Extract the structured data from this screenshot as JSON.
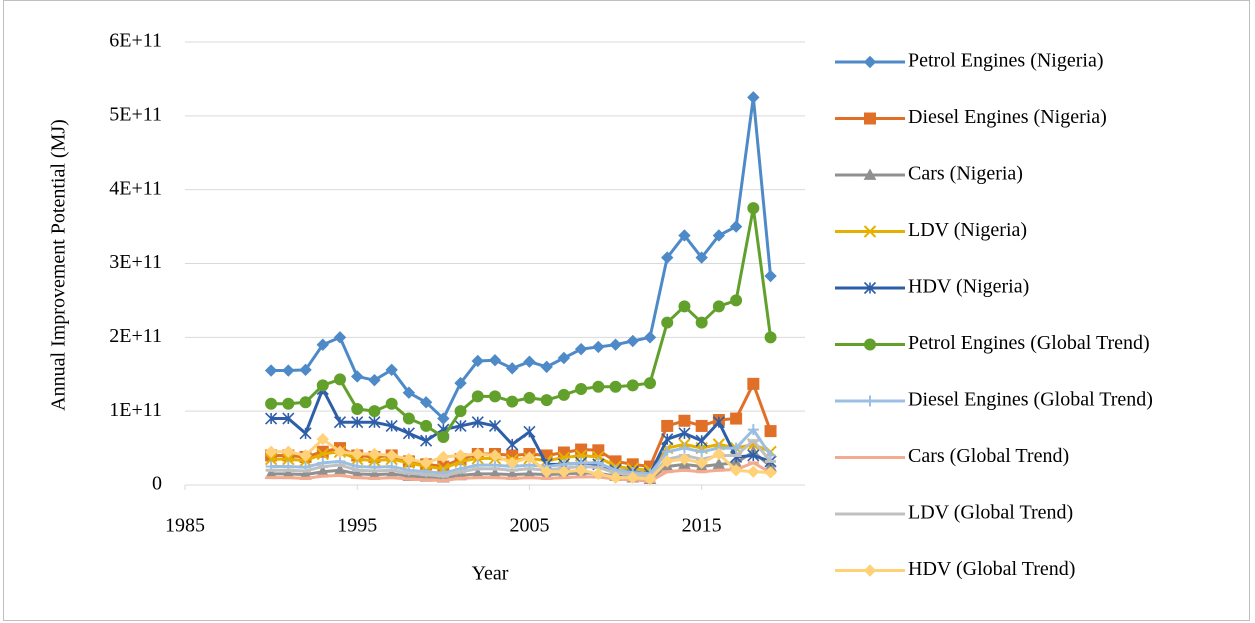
{
  "chart_data": {
    "type": "line",
    "x_label": "Year",
    "y_label": "Annual Improvement Potential (MJ)",
    "x": [
      1990,
      1991,
      1992,
      1993,
      1994,
      1995,
      1996,
      1997,
      1998,
      1999,
      2000,
      2001,
      2002,
      2003,
      2004,
      2005,
      2006,
      2007,
      2008,
      2009,
      2010,
      2011,
      2012,
      2013,
      2014,
      2015,
      2016,
      2017,
      2018,
      2019
    ],
    "xlim": [
      1985,
      2021
    ],
    "xticks": [
      1985,
      1995,
      2005,
      2015
    ],
    "ylim": [
      0,
      600000000000.0
    ],
    "yticks": [
      0,
      {
        "value": 100000000000.0,
        "label": "1E+11"
      },
      {
        "value": 200000000000.0,
        "label": "2E+11"
      },
      {
        "value": 300000000000.0,
        "label": "3E+11"
      },
      {
        "value": 400000000000.0,
        "label": "4E+11"
      },
      {
        "value": 500000000000.0,
        "label": "5E+11"
      },
      {
        "value": 600000000000.0,
        "label": "6E+11"
      }
    ],
    "grid": true,
    "legend": "right",
    "series": [
      {
        "name": "Petrol Engines (Nigeria)",
        "color": "#4e8ac8",
        "marker": "diamond",
        "values": [
          155000000000.0,
          155000000000.0,
          156000000000.0,
          190000000000.0,
          200000000000.0,
          147000000000.0,
          142000000000.0,
          156000000000.0,
          125000000000.0,
          112000000000.0,
          90000000000.0,
          138000000000.0,
          168000000000.0,
          169000000000.0,
          158000000000.0,
          167000000000.0,
          160000000000.0,
          172000000000.0,
          184000000000.0,
          187000000000.0,
          190000000000.0,
          195000000000.0,
          200000000000.0,
          308000000000.0,
          338000000000.0,
          308000000000.0,
          338000000000.0,
          350000000000.0,
          525000000000.0,
          283000000000.0
        ]
      },
      {
        "name": "Diesel Engines (Nigeria)",
        "color": "#e07028",
        "marker": "square",
        "values": [
          40000000000.0,
          40000000000.0,
          38000000000.0,
          45000000000.0,
          50000000000.0,
          40000000000.0,
          38000000000.0,
          40000000000.0,
          32000000000.0,
          28000000000.0,
          25000000000.0,
          35000000000.0,
          42000000000.0,
          42000000000.0,
          40000000000.0,
          42000000000.0,
          40000000000.0,
          44000000000.0,
          48000000000.0,
          47000000000.0,
          32000000000.0,
          28000000000.0,
          25000000000.0,
          80000000000.0,
          87000000000.0,
          80000000000.0,
          88000000000.0,
          90000000000.0,
          137000000000.0,
          73000000000.0
        ]
      },
      {
        "name": "Cars (Nigeria)",
        "color": "#909090",
        "marker": "triangle",
        "values": [
          15000000000.0,
          15000000000.0,
          14000000000.0,
          18000000000.0,
          20000000000.0,
          15000000000.0,
          14000000000.0,
          15000000000.0,
          12000000000.0,
          11000000000.0,
          10000000000.0,
          13000000000.0,
          15000000000.0,
          15000000000.0,
          14000000000.0,
          15000000000.0,
          14000000000.0,
          15000000000.0,
          16000000000.0,
          16000000000.0,
          12000000000.0,
          10000000000.0,
          8000000000.0,
          25000000000.0,
          28000000000.0,
          25000000000.0,
          28000000000.0,
          30000000000.0,
          45000000000.0,
          25000000000.0
        ]
      },
      {
        "name": "LDV (Nigeria)",
        "color": "#e6b000",
        "marker": "x",
        "values": [
          35000000000.0,
          35000000000.0,
          33000000000.0,
          42000000000.0,
          45000000000.0,
          35000000000.0,
          33000000000.0,
          35000000000.0,
          30000000000.0,
          25000000000.0,
          22000000000.0,
          32000000000.0,
          36000000000.0,
          36000000000.0,
          34000000000.0,
          36000000000.0,
          33000000000.0,
          37000000000.0,
          40000000000.0,
          38000000000.0,
          25000000000.0,
          22000000000.0,
          20000000000.0,
          50000000000.0,
          55000000000.0,
          50000000000.0,
          55000000000.0,
          50000000000.0,
          55000000000.0,
          45000000000.0
        ]
      },
      {
        "name": "HDV (Nigeria)",
        "color": "#2f5ea8",
        "marker": "star",
        "values": [
          90000000000.0,
          90000000000.0,
          70000000000.0,
          130000000000.0,
          85000000000.0,
          85000000000.0,
          85000000000.0,
          80000000000.0,
          70000000000.0,
          60000000000.0,
          75000000000.0,
          80000000000.0,
          85000000000.0,
          80000000000.0,
          55000000000.0,
          72000000000.0,
          28000000000.0,
          28000000000.0,
          30000000000.0,
          28000000000.0,
          20000000000.0,
          18000000000.0,
          15000000000.0,
          62000000000.0,
          70000000000.0,
          60000000000.0,
          85000000000.0,
          38000000000.0,
          40000000000.0,
          32000000000.0
        ]
      },
      {
        "name": "Petrol Engines (Global Trend)",
        "color": "#62a02c",
        "marker": "circle",
        "values": [
          110000000000.0,
          110000000000.0,
          112000000000.0,
          135000000000.0,
          143000000000.0,
          103000000000.0,
          100000000000.0,
          110000000000.0,
          90000000000.0,
          80000000000.0,
          65000000000.0,
          100000000000.0,
          120000000000.0,
          120000000000.0,
          113000000000.0,
          118000000000.0,
          115000000000.0,
          122000000000.0,
          130000000000.0,
          133000000000.0,
          133000000000.0,
          135000000000.0,
          138000000000.0,
          220000000000.0,
          242000000000.0,
          220000000000.0,
          242000000000.0,
          250000000000.0,
          375000000000.0,
          200000000000.0
        ]
      },
      {
        "name": "Diesel Engines (Global Trend)",
        "color": "#9bbfe3",
        "marker": "plus",
        "values": [
          25000000000.0,
          25000000000.0,
          24000000000.0,
          30000000000.0,
          32000000000.0,
          25000000000.0,
          24000000000.0,
          25000000000.0,
          20000000000.0,
          18000000000.0,
          16000000000.0,
          22000000000.0,
          27000000000.0,
          27000000000.0,
          25000000000.0,
          27000000000.0,
          25000000000.0,
          28000000000.0,
          30000000000.0,
          30000000000.0,
          20000000000.0,
          17000000000.0,
          15000000000.0,
          45000000000.0,
          50000000000.0,
          45000000000.0,
          50000000000.0,
          50000000000.0,
          75000000000.0,
          40000000000.0
        ]
      },
      {
        "name": "Cars (Global Trend)",
        "color": "#f2ab8e",
        "marker": "dash",
        "values": [
          10000000000.0,
          10000000000.0,
          9000000000.0,
          12000000000.0,
          13000000000.0,
          10000000000.0,
          9000000000.0,
          10000000000.0,
          8000000000.0,
          7000000000.0,
          6000000000.0,
          9000000000.0,
          10000000000.0,
          10000000000.0,
          9000000000.0,
          10000000000.0,
          9000000000.0,
          10000000000.0,
          11000000000.0,
          11000000000.0,
          8000000000.0,
          7000000000.0,
          5000000000.0,
          18000000000.0,
          20000000000.0,
          18000000000.0,
          20000000000.0,
          21000000000.0,
          30000000000.0,
          17000000000.0
        ]
      },
      {
        "name": "LDV (Global Trend)",
        "color": "#c0c0c0",
        "marker": "dash",
        "values": [
          20000000000.0,
          20000000000.0,
          19000000000.0,
          25000000000.0,
          27000000000.0,
          20000000000.0,
          19000000000.0,
          20000000000.0,
          16000000000.0,
          14000000000.0,
          12000000000.0,
          18000000000.0,
          22000000000.0,
          22000000000.0,
          20000000000.0,
          22000000000.0,
          20000000000.0,
          23000000000.0,
          25000000000.0,
          24000000000.0,
          16000000000.0,
          14000000000.0,
          12000000000.0,
          35000000000.0,
          40000000000.0,
          35000000000.0,
          40000000000.0,
          40000000000.0,
          60000000000.0,
          32000000000.0
        ]
      },
      {
        "name": "HDV (Global Trend)",
        "color": "#ffd27a",
        "marker": "diamond",
        "values": [
          45000000000.0,
          45000000000.0,
          40000000000.0,
          62000000000.0,
          45000000000.0,
          42000000000.0,
          42000000000.0,
          40000000000.0,
          35000000000.0,
          30000000000.0,
          38000000000.0,
          40000000000.0,
          42000000000.0,
          40000000000.0,
          30000000000.0,
          37000000000.0,
          18000000000.0,
          18000000000.0,
          20000000000.0,
          15000000000.0,
          10000000000.0,
          10000000000.0,
          8000000000.0,
          32000000000.0,
          35000000000.0,
          30000000000.0,
          42000000000.0,
          20000000000.0,
          18000000000.0,
          17000000000.0
        ]
      }
    ]
  }
}
